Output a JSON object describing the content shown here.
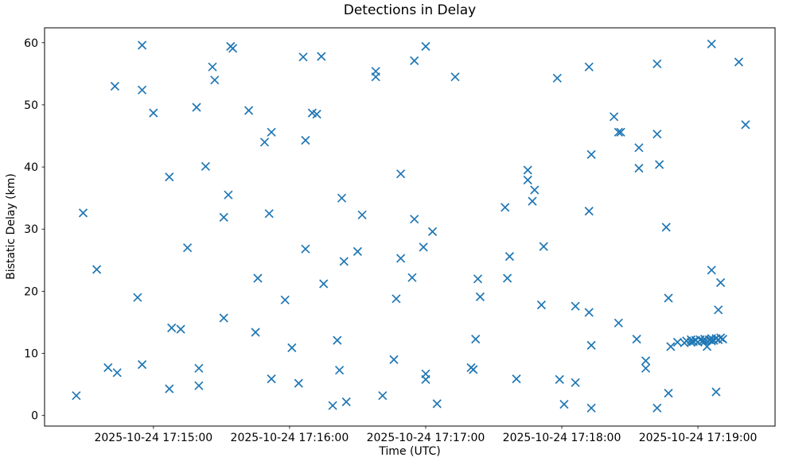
{
  "chart_data": {
    "type": "scatter",
    "title": "Detections in Delay",
    "xlabel": "Time (UTC)",
    "ylabel": "Bistatic Delay (km)",
    "date": "2025-10-24",
    "marker": "x",
    "marker_color": "#1f77b4",
    "grid": false,
    "legend_position": "none",
    "x_axis": {
      "min_time": "17:14:12",
      "max_time": "17:19:34",
      "ticks": [
        {
          "time": "17:15:00",
          "label": "2025-10-24 17:15:00"
        },
        {
          "time": "17:16:00",
          "label": "2025-10-24 17:16:00"
        },
        {
          "time": "17:17:00",
          "label": "2025-10-24 17:17:00"
        },
        {
          "time": "17:18:00",
          "label": "2025-10-24 17:18:00"
        },
        {
          "time": "17:19:00",
          "label": "2025-10-24 17:19:00"
        }
      ]
    },
    "y_axis": {
      "min": -1.7,
      "max": 62.4,
      "ticks": [
        "0",
        "10",
        "20",
        "30",
        "40",
        "50",
        "60"
      ]
    },
    "series": [
      {
        "name": "detections",
        "points": [
          [
            "17:14:26",
            3.2
          ],
          [
            "17:14:29",
            32.6
          ],
          [
            "17:14:35",
            23.5
          ],
          [
            "17:14:40",
            7.7
          ],
          [
            "17:14:43",
            53.0
          ],
          [
            "17:14:44",
            6.9
          ],
          [
            "17:14:53",
            19.0
          ],
          [
            "17:14:55",
            59.6
          ],
          [
            "17:14:55",
            52.4
          ],
          [
            "17:14:55",
            8.2
          ],
          [
            "17:15:00",
            48.7
          ],
          [
            "17:15:07",
            38.4
          ],
          [
            "17:15:07",
            4.3
          ],
          [
            "17:15:08",
            14.1
          ],
          [
            "17:15:12",
            13.9
          ],
          [
            "17:15:15",
            27.0
          ],
          [
            "17:15:19",
            49.6
          ],
          [
            "17:15:20",
            7.6
          ],
          [
            "17:15:20",
            4.8
          ],
          [
            "17:15:23",
            40.1
          ],
          [
            "17:15:26",
            56.1
          ],
          [
            "17:15:27",
            54.0
          ],
          [
            "17:15:31",
            31.9
          ],
          [
            "17:15:31",
            15.7
          ],
          [
            "17:15:33",
            35.5
          ],
          [
            "17:15:34",
            59.4
          ],
          [
            "17:15:35",
            59.1
          ],
          [
            "17:15:42",
            49.1
          ],
          [
            "17:15:45",
            13.4
          ],
          [
            "17:15:46",
            22.1
          ],
          [
            "17:15:49",
            44.0
          ],
          [
            "17:15:51",
            32.5
          ],
          [
            "17:15:52",
            45.6
          ],
          [
            "17:15:52",
            5.9
          ],
          [
            "17:15:58",
            18.6
          ],
          [
            "17:16:01",
            10.9
          ],
          [
            "17:16:04",
            5.2
          ],
          [
            "17:16:06",
            57.7
          ],
          [
            "17:16:07",
            44.3
          ],
          [
            "17:16:07",
            26.8
          ],
          [
            "17:16:10",
            48.7
          ],
          [
            "17:16:12",
            48.5
          ],
          [
            "17:16:14",
            57.8
          ],
          [
            "17:16:15",
            21.2
          ],
          [
            "17:16:19",
            1.6
          ],
          [
            "17:16:21",
            12.1
          ],
          [
            "17:16:22",
            7.3
          ],
          [
            "17:16:23",
            35.0
          ],
          [
            "17:16:24",
            24.8
          ],
          [
            "17:16:25",
            2.2
          ],
          [
            "17:16:30",
            26.4
          ],
          [
            "17:16:32",
            32.3
          ],
          [
            "17:16:38",
            55.4
          ],
          [
            "17:16:38",
            54.5
          ],
          [
            "17:16:41",
            3.2
          ],
          [
            "17:16:46",
            9.0
          ],
          [
            "17:16:47",
            18.8
          ],
          [
            "17:16:49",
            38.9
          ],
          [
            "17:16:49",
            25.3
          ],
          [
            "17:16:54",
            22.2
          ],
          [
            "17:16:55",
            57.1
          ],
          [
            "17:16:55",
            31.6
          ],
          [
            "17:16:59",
            27.1
          ],
          [
            "17:17:00",
            59.4
          ],
          [
            "17:17:00",
            6.7
          ],
          [
            "17:17:00",
            5.8
          ],
          [
            "17:17:03",
            29.6
          ],
          [
            "17:17:05",
            1.9
          ],
          [
            "17:17:13",
            54.5
          ],
          [
            "17:17:20",
            7.7
          ],
          [
            "17:17:21",
            7.4
          ],
          [
            "17:17:22",
            12.3
          ],
          [
            "17:17:23",
            22.0
          ],
          [
            "17:17:24",
            19.1
          ],
          [
            "17:17:35",
            33.5
          ],
          [
            "17:17:36",
            22.1
          ],
          [
            "17:17:37",
            25.6
          ],
          [
            "17:17:40",
            5.9
          ],
          [
            "17:17:45",
            39.5
          ],
          [
            "17:17:45",
            37.9
          ],
          [
            "17:17:47",
            34.5
          ],
          [
            "17:17:48",
            36.3
          ],
          [
            "17:17:51",
            17.8
          ],
          [
            "17:17:52",
            27.2
          ],
          [
            "17:17:58",
            54.3
          ],
          [
            "17:17:59",
            5.8
          ],
          [
            "17:18:01",
            1.8
          ],
          [
            "17:18:06",
            17.6
          ],
          [
            "17:18:06",
            5.3
          ],
          [
            "17:18:12",
            56.1
          ],
          [
            "17:18:12",
            32.9
          ],
          [
            "17:18:12",
            16.6
          ],
          [
            "17:18:13",
            42.0
          ],
          [
            "17:18:13",
            11.3
          ],
          [
            "17:18:13",
            1.2
          ],
          [
            "17:18:23",
            48.1
          ],
          [
            "17:18:25",
            45.6
          ],
          [
            "17:18:25",
            14.9
          ],
          [
            "17:18:26",
            45.6
          ],
          [
            "17:18:33",
            12.3
          ],
          [
            "17:18:34",
            43.1
          ],
          [
            "17:18:34",
            39.8
          ],
          [
            "17:18:37",
            8.8
          ],
          [
            "17:18:37",
            7.6
          ],
          [
            "17:18:42",
            56.6
          ],
          [
            "17:18:42",
            45.3
          ],
          [
            "17:18:42",
            1.2
          ],
          [
            "17:18:43",
            40.4
          ],
          [
            "17:18:46",
            30.3
          ],
          [
            "17:18:47",
            18.9
          ],
          [
            "17:18:47",
            3.6
          ],
          [
            "17:18:48",
            11.1
          ],
          [
            "17:18:51",
            11.8
          ],
          [
            "17:18:54",
            11.7
          ],
          [
            "17:18:55",
            12.0
          ],
          [
            "17:18:57",
            11.8
          ],
          [
            "17:18:57",
            12.2
          ],
          [
            "17:18:58",
            11.9
          ],
          [
            "17:18:59",
            12.1
          ],
          [
            "17:19:00",
            11.8
          ],
          [
            "17:19:01",
            12.2
          ],
          [
            "17:19:02",
            12.0
          ],
          [
            "17:19:03",
            12.3
          ],
          [
            "17:19:03",
            11.9
          ],
          [
            "17:19:04",
            11.1
          ],
          [
            "17:19:05",
            12.2
          ],
          [
            "17:19:06",
            59.8
          ],
          [
            "17:19:06",
            23.4
          ],
          [
            "17:19:06",
            12.0
          ],
          [
            "17:19:06",
            12.4
          ],
          [
            "17:19:07",
            12.1
          ],
          [
            "17:19:08",
            12.4
          ],
          [
            "17:19:08",
            3.8
          ],
          [
            "17:19:09",
            17.0
          ],
          [
            "17:19:09",
            12.2
          ],
          [
            "17:19:10",
            21.4
          ],
          [
            "17:19:10",
            12.5
          ],
          [
            "17:19:11",
            12.3
          ],
          [
            "17:19:18",
            56.9
          ],
          [
            "17:19:21",
            46.8
          ]
        ]
      }
    ]
  }
}
